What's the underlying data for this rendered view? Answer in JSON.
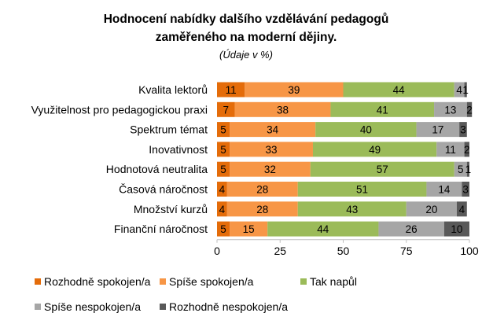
{
  "chart_data": {
    "type": "bar",
    "orientation": "horizontal",
    "stacked": true,
    "title_line1": "Hodnocení nabídky dalšího vzdělávání pedagogů",
    "title_line2": "zaměřeného na moderní dějiny.",
    "subtitle": "(Údaje v %)",
    "xlim": [
      0,
      100
    ],
    "ticks": [
      "0",
      "25",
      "50",
      "75",
      "100"
    ],
    "tick_values": [
      0,
      25,
      50,
      75,
      100
    ],
    "grid": false,
    "legend_position": "bottom",
    "categories": [
      "Kvalita lektorů",
      "Využitelnost pro pedagogickou praxi",
      "Spektrum témat",
      "Inovativnost",
      "Hodnotová neutralita",
      "Časová náročnost",
      "Množství kurzů",
      "Finanční náročnost"
    ],
    "series": [
      {
        "name": "Rozhodně spokojen/a",
        "color": "#E46C0A",
        "label_color": "#000000",
        "values": [
          11,
          7,
          5,
          5,
          5,
          4,
          4,
          5
        ]
      },
      {
        "name": "Spíše spokojen/a",
        "color": "#F79646",
        "label_color": "#000000",
        "values": [
          39,
          38,
          34,
          33,
          32,
          28,
          28,
          15
        ]
      },
      {
        "name": "Tak napůl",
        "color": "#9BBB59",
        "label_color": "#000000",
        "values": [
          44,
          41,
          40,
          49,
          57,
          51,
          43,
          44
        ]
      },
      {
        "name": "Spíše nespokojen/a",
        "color": "#A6A6A6",
        "label_color": "#000000",
        "values": [
          4,
          13,
          17,
          11,
          5,
          14,
          20,
          26
        ]
      },
      {
        "name": "Rozhodně nespokojen/a",
        "color": "#595959",
        "label_color": "#000000",
        "values": [
          1,
          2,
          3,
          2,
          1,
          3,
          4,
          10
        ]
      }
    ]
  }
}
